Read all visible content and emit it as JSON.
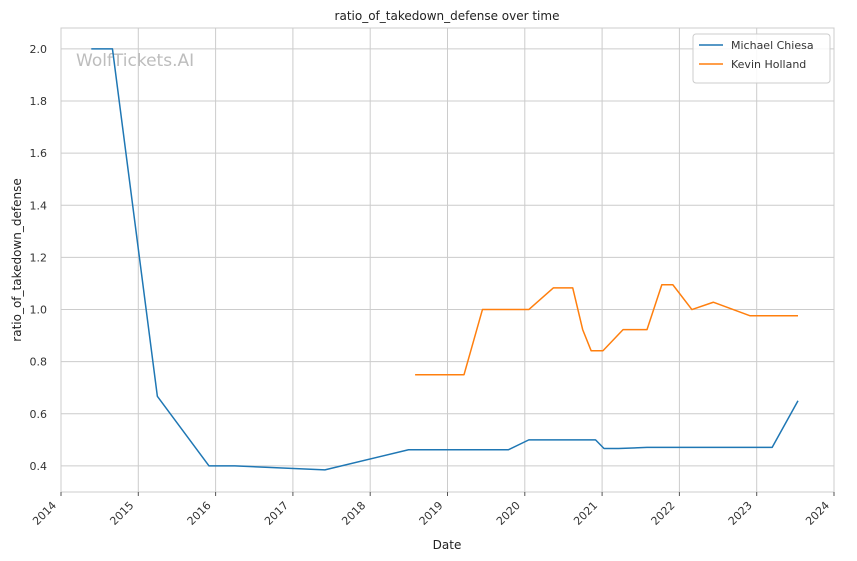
{
  "chart_data": {
    "type": "line",
    "title": "ratio_of_takedown_defense over time",
    "xlabel": "Date",
    "ylabel": "ratio_of_takedown_defense",
    "watermark": "WolfTickets.AI",
    "xlim": [
      "2014-01-01",
      "2024-01-01"
    ],
    "ylim": [
      0.3,
      2.08
    ],
    "x_ticks": [
      "2014",
      "2015",
      "2016",
      "2017",
      "2018",
      "2019",
      "2020",
      "2021",
      "2022",
      "2023",
      "2024"
    ],
    "y_ticks": [
      "0.4",
      "0.6",
      "0.8",
      "1.0",
      "1.2",
      "1.4",
      "1.6",
      "1.8",
      "2.0"
    ],
    "grid": true,
    "legend_position": "top-right",
    "series": [
      {
        "name": "Michael Chiesa",
        "color": "#1f77b4",
        "points": [
          [
            "2014-05-24",
            2.0
          ],
          [
            "2014-09-01",
            2.0
          ],
          [
            "2015-04-01",
            0.667
          ],
          [
            "2015-12-01",
            0.4
          ],
          [
            "2016-04-01",
            0.4
          ],
          [
            "2017-06-01",
            0.385
          ],
          [
            "2018-07-01",
            0.462
          ],
          [
            "2019-10-15",
            0.462
          ],
          [
            "2020-01-20",
            0.5
          ],
          [
            "2020-12-01",
            0.5
          ],
          [
            "2021-01-10",
            0.467
          ],
          [
            "2021-03-20",
            0.467
          ],
          [
            "2021-08-01",
            0.471
          ],
          [
            "2023-03-15",
            0.471
          ],
          [
            "2023-07-15",
            0.65
          ]
        ]
      },
      {
        "name": "Kevin Holland",
        "color": "#ff7f0e",
        "points": [
          [
            "2018-08-01",
            0.75
          ],
          [
            "2019-03-20",
            0.75
          ],
          [
            "2019-06-15",
            1.0
          ],
          [
            "2020-01-20",
            1.0
          ],
          [
            "2020-05-15",
            1.083
          ],
          [
            "2020-08-15",
            1.083
          ],
          [
            "2020-10-01",
            0.923
          ],
          [
            "2020-11-10",
            0.842
          ],
          [
            "2021-01-05",
            0.842
          ],
          [
            "2021-04-10",
            0.923
          ],
          [
            "2021-08-01",
            0.923
          ],
          [
            "2021-10-10",
            1.095
          ],
          [
            "2021-12-01",
            1.095
          ],
          [
            "2022-03-01",
            1.0
          ],
          [
            "2022-06-10",
            1.028
          ],
          [
            "2022-12-01",
            0.976
          ],
          [
            "2023-07-15",
            0.976
          ]
        ]
      }
    ]
  }
}
